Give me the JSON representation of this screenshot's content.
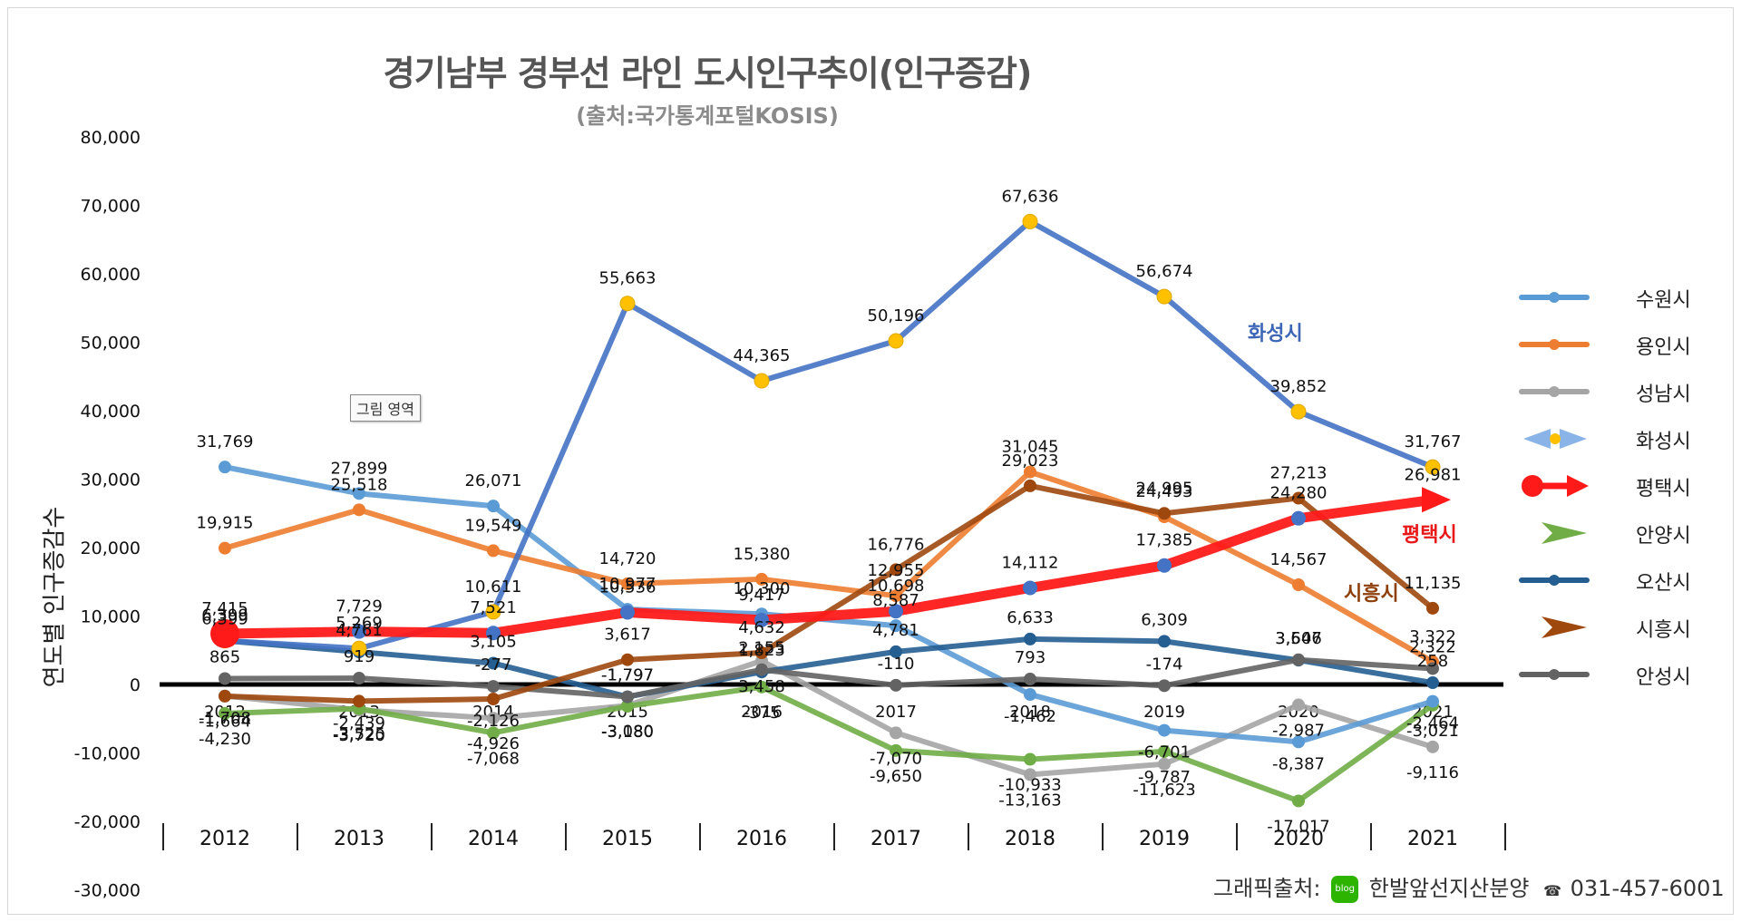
{
  "chart_data": {
    "type": "line",
    "title": "경기남부 경부선 라인  도시인구추이(인구증감)",
    "subtitle": "(출처:국가통계포털KOSIS)",
    "ylabel": "연도별 인구증감수",
    "xlabel": "",
    "ylim": [
      -30000,
      80000
    ],
    "y_ticks": [
      "80,000",
      "70,000",
      "60,000",
      "50,000",
      "40,000",
      "30,000",
      "20,000",
      "10,000",
      "0",
      "-10,000",
      "-20,000",
      "-30,000"
    ],
    "y_tick_values": [
      80000,
      70000,
      60000,
      50000,
      40000,
      30000,
      20000,
      10000,
      0,
      -10000,
      -20000,
      -30000
    ],
    "categories": [
      "2012",
      "2013",
      "2014",
      "2015",
      "2016",
      "2017",
      "2018",
      "2019",
      "2020",
      "2021"
    ],
    "series": [
      {
        "name": "수원시",
        "color": "#5b9bd5",
        "values": [
          31769,
          27899,
          26071,
          10977,
          10300,
          8587,
          -1462,
          -6701,
          -8387,
          -2464
        ]
      },
      {
        "name": "용인시",
        "color": "#ed7d31",
        "values": [
          19915,
          25518,
          19549,
          14720,
          15380,
          12955,
          31045,
          24493,
          14567,
          3322
        ]
      },
      {
        "name": "성남시",
        "color": "#a5a5a5",
        "values": [
          -1664,
          -3720,
          -4926,
          -3080,
          3458,
          -7070,
          -13163,
          -11623,
          -2987,
          -9116
        ]
      },
      {
        "name": "화성시",
        "color": "#4472c4",
        "values": [
          6399,
          5269,
          10611,
          55663,
          44365,
          50196,
          67636,
          56674,
          39852,
          31767
        ]
      },
      {
        "name": "평택시",
        "color": "#ff1a1a",
        "values": [
          7415,
          7729,
          7521,
          10536,
          9417,
          10698,
          14112,
          17385,
          24280,
          26981
        ]
      },
      {
        "name": "안양시",
        "color": "#70ad47",
        "values": [
          -4230,
          -3525,
          -7068,
          -3180,
          -375,
          -9650,
          -10933,
          -9787,
          -17017,
          -3021
        ]
      },
      {
        "name": "오산시",
        "color": "#255e91",
        "values": [
          6399,
          4761,
          3105,
          -1797,
          1823,
          4781,
          6633,
          6309,
          3546,
          258
        ]
      },
      {
        "name": "시흥시",
        "color": "#9e480e",
        "values": [
          -1708,
          -2439,
          -2126,
          3617,
          4632,
          16776,
          29023,
          24995,
          27213,
          11135
        ]
      },
      {
        "name": "안성시",
        "color": "#636363",
        "values": [
          865,
          919,
          -277,
          -1797,
          2155,
          -110,
          793,
          -174,
          3607,
          2322
        ]
      }
    ],
    "data_labels": [
      [
        "31,769",
        "27,899",
        "26,071",
        "10,977",
        "10,300",
        "8,587",
        "-1,462",
        "-6,701",
        "-8,387",
        "-2,464"
      ],
      [
        "19,915",
        "25,518",
        "19,549",
        "14,720",
        "15,380",
        "12,955",
        "31,045",
        "24,493",
        "14,567",
        "3,322"
      ],
      [
        "-1,664",
        "-3,720",
        "-4,926",
        "-3,080",
        "3,458",
        "-7,070",
        "-13,163",
        "-11,623",
        "-2,987",
        "-9,116"
      ],
      [
        "6,399",
        "5,269",
        "10,611",
        "55,663",
        "44,365",
        "50,196",
        "67,636",
        "56,674",
        "39,852",
        "31,767"
      ],
      [
        "7,415",
        "7,729",
        "7,521",
        "10,536",
        "9,417",
        "10,698",
        "14,112",
        "17,385",
        "24,280",
        "26,981"
      ],
      [
        "-4,230",
        "-3,525",
        "-7,068",
        "-3,180",
        "-375",
        "-9,650",
        "-10,933",
        "-9,787",
        "-17,017",
        "-3,021"
      ],
      [
        "6,399",
        "4,761",
        "3,105",
        "-1,797",
        "1,823",
        "4,781",
        "6,633",
        "6,309",
        "3,546",
        "258"
      ],
      [
        "-1,708",
        "-2,439",
        "-2,126",
        "3,617",
        "4,632",
        "16,776",
        "29,023",
        "24,995",
        "27,213",
        "11,135"
      ],
      [
        "865",
        "919",
        "-277",
        "-1,797",
        "2,155",
        "-110",
        "793",
        "-174",
        "3,607",
        "2,322"
      ]
    ],
    "callout": "그림 영역",
    "annotations": {
      "hwaseong": "화성시",
      "pyeongtaek": "평택시",
      "siheung": "시흥시"
    },
    "legend": [
      "수원시",
      "용인시",
      "성남시",
      "화성시",
      "평택시",
      "안양시",
      "오산시",
      "시흥시",
      "안성시"
    ],
    "legend_position": "right",
    "grid": false
  },
  "footer": {
    "label": "그래픽출처:",
    "blog_icon": "blog",
    "company": "한발앞선지산분양",
    "phone_icon": "☎",
    "phone": "031-457-6001"
  }
}
